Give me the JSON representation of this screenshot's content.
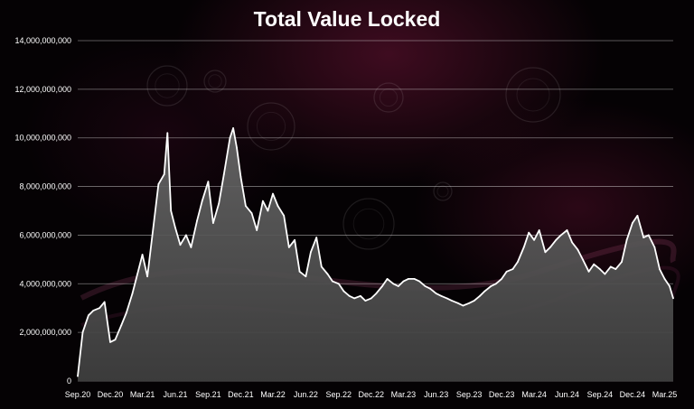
{
  "chart_data": {
    "type": "area",
    "title": "Total Value Locked",
    "xlabel": "",
    "ylabel": "",
    "ylim": [
      0,
      14000000000
    ],
    "y_ticks": [
      "0",
      "2,000,000,000",
      "4,000,000,000",
      "6,000,000,000",
      "8,000,000,000",
      "10,000,000,000",
      "12,000,000,000",
      "14,000,000,000"
    ],
    "x_ticks": [
      "Sep.20",
      "Dec.20",
      "Mar.21",
      "Jun.21",
      "Sep.21",
      "Dec.21",
      "Mar.22",
      "Jun.22",
      "Sep.22",
      "Dec.22",
      "Mar.23",
      "Jun.23",
      "Sep.23",
      "Dec.23",
      "Mar.24",
      "Jun.24",
      "Sep.24",
      "Dec.24",
      "Mar.25"
    ],
    "grid": true,
    "legend": "none",
    "x": [
      "2020-09-01",
      "2020-09-15",
      "2020-10-01",
      "2020-10-15",
      "2020-11-01",
      "2020-11-15",
      "2020-12-01",
      "2020-12-15",
      "2021-01-01",
      "2021-01-15",
      "2021-02-01",
      "2021-02-15",
      "2021-03-01",
      "2021-03-15",
      "2021-04-01",
      "2021-04-15",
      "2021-05-01",
      "2021-05-10",
      "2021-05-20",
      "2021-06-01",
      "2021-06-15",
      "2021-07-01",
      "2021-07-15",
      "2021-08-01",
      "2021-08-15",
      "2021-09-01",
      "2021-09-15",
      "2021-10-01",
      "2021-10-15",
      "2021-11-01",
      "2021-11-10",
      "2021-11-20",
      "2021-12-01",
      "2021-12-15",
      "2022-01-01",
      "2022-01-15",
      "2022-02-01",
      "2022-02-15",
      "2022-03-01",
      "2022-03-15",
      "2022-04-01",
      "2022-04-15",
      "2022-05-01",
      "2022-05-15",
      "2022-06-01",
      "2022-06-15",
      "2022-07-01",
      "2022-07-15",
      "2022-08-01",
      "2022-08-15",
      "2022-09-01",
      "2022-09-15",
      "2022-10-01",
      "2022-10-15",
      "2022-11-01",
      "2022-11-15",
      "2022-12-01",
      "2022-12-15",
      "2023-01-01",
      "2023-01-15",
      "2023-02-01",
      "2023-02-15",
      "2023-03-01",
      "2023-03-15",
      "2023-04-01",
      "2023-04-15",
      "2023-05-01",
      "2023-05-15",
      "2023-06-01",
      "2023-06-15",
      "2023-07-01",
      "2023-07-15",
      "2023-08-01",
      "2023-08-15",
      "2023-09-01",
      "2023-09-15",
      "2023-10-01",
      "2023-10-15",
      "2023-11-01",
      "2023-11-15",
      "2023-12-01",
      "2023-12-15",
      "2024-01-01",
      "2024-01-15",
      "2024-02-01",
      "2024-02-15",
      "2024-03-01",
      "2024-03-15",
      "2024-04-01",
      "2024-04-15",
      "2024-05-01",
      "2024-05-15",
      "2024-06-01",
      "2024-06-15",
      "2024-07-01",
      "2024-07-15",
      "2024-08-01",
      "2024-08-15",
      "2024-09-01",
      "2024-09-15",
      "2024-10-01",
      "2024-10-15",
      "2024-11-01",
      "2024-11-15",
      "2024-12-01",
      "2024-12-15",
      "2025-01-01",
      "2025-01-15",
      "2025-02-01",
      "2025-02-15",
      "2025-03-01",
      "2025-03-15",
      "2025-03-25"
    ],
    "series": [
      {
        "name": "",
        "values": [
          200000000,
          2000000000,
          2700000000,
          2900000000,
          3000000000,
          3250000000,
          1600000000,
          1700000000,
          2300000000,
          2800000000,
          3600000000,
          4400000000,
          5200000000,
          4300000000,
          6400000000,
          8100000000,
          8500000000,
          10200000000,
          7000000000,
          6300000000,
          5600000000,
          6000000000,
          5500000000,
          6600000000,
          7400000000,
          8200000000,
          6500000000,
          7300000000,
          8500000000,
          10000000000,
          10400000000,
          9600000000,
          8400000000,
          7200000000,
          6900000000,
          6200000000,
          7400000000,
          7000000000,
          7700000000,
          7200000000,
          6800000000,
          5500000000,
          5800000000,
          4500000000,
          4300000000,
          5300000000,
          5900000000,
          4700000000,
          4400000000,
          4100000000,
          4000000000,
          3700000000,
          3500000000,
          3400000000,
          3500000000,
          3300000000,
          3400000000,
          3600000000,
          3900000000,
          4200000000,
          4000000000,
          3900000000,
          4100000000,
          4200000000,
          4200000000,
          4100000000,
          3900000000,
          3800000000,
          3600000000,
          3500000000,
          3400000000,
          3300000000,
          3200000000,
          3100000000,
          3200000000,
          3300000000,
          3500000000,
          3700000000,
          3900000000,
          4000000000,
          4200000000,
          4500000000,
          4600000000,
          4900000000,
          5500000000,
          6100000000,
          5800000000,
          6200000000,
          5300000000,
          5500000000,
          5800000000,
          6000000000,
          6200000000,
          5700000000,
          5400000000,
          5000000000,
          4500000000,
          4800000000,
          4600000000,
          4400000000,
          4700000000,
          4600000000,
          4900000000,
          5800000000,
          6500000000,
          6800000000,
          5900000000,
          6000000000,
          5500000000,
          4600000000,
          4200000000,
          3900000000,
          3400000000
        ]
      }
    ]
  }
}
